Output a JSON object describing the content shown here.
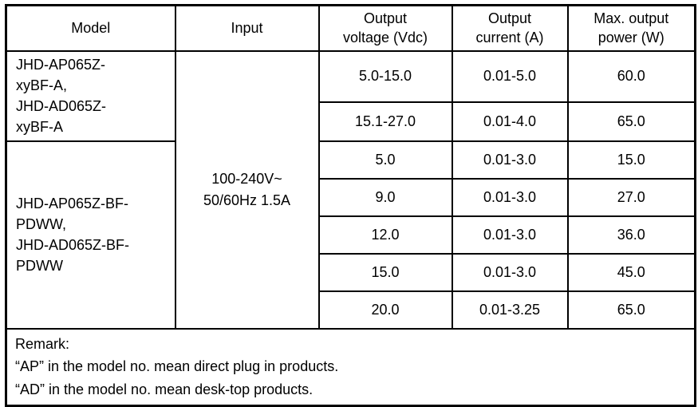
{
  "table": {
    "headers": {
      "model": "Model",
      "input": "Input",
      "output_voltage": "Output\nvoltage (Vdc)",
      "output_current": "Output\ncurrent (A)",
      "max_output_power": "Max. output\npower (W)"
    },
    "model_groups": [
      {
        "name": "JHD-AP065Z-\nxyBF-A,\nJHD-AD065Z-\nxyBF-A"
      },
      {
        "name": "JHD-AP065Z-BF-\nPDWW,\nJHD-AD065Z-BF-\nPDWW"
      }
    ],
    "input_value": "100-240V~\n50/60Hz 1.5A",
    "rows": [
      {
        "voltage": "5.0-15.0",
        "current": "0.01-5.0",
        "power": "60.0"
      },
      {
        "voltage": "15.1-27.0",
        "current": "0.01-4.0",
        "power": "65.0"
      },
      {
        "voltage": "5.0",
        "current": "0.01-3.0",
        "power": "15.0"
      },
      {
        "voltage": "9.0",
        "current": "0.01-3.0",
        "power": "27.0"
      },
      {
        "voltage": "12.0",
        "current": "0.01-3.0",
        "power": "36.0"
      },
      {
        "voltage": "15.0",
        "current": "0.01-3.0",
        "power": "45.0"
      },
      {
        "voltage": "20.0",
        "current": "0.01-3.25",
        "power": "65.0"
      }
    ],
    "remark": "Remark:\n“AP” in the model no. mean direct plug in products.\n“AD” in the model no. mean desk-top products.",
    "colors": {
      "border": "#000000",
      "text": "#000000",
      "background": "#ffffff"
    }
  }
}
